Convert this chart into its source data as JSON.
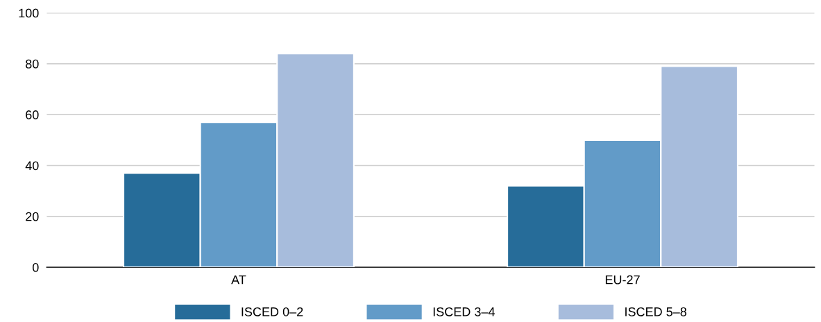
{
  "chart_data": {
    "type": "bar",
    "categories": [
      "AT",
      "EU-27"
    ],
    "series": [
      {
        "name": "ISCED 0–2",
        "color": "#266c99",
        "values": [
          37,
          32
        ]
      },
      {
        "name": "ISCED 3–4",
        "color": "#629bc8",
        "values": [
          57,
          50
        ]
      },
      {
        "name": "ISCED 5–8",
        "color": "#a7bcdc",
        "values": [
          84,
          79
        ]
      }
    ],
    "ylim": [
      0,
      100
    ],
    "yticks": [
      0,
      20,
      40,
      60,
      80,
      100
    ],
    "grid": "y",
    "legend": "bottom"
  }
}
